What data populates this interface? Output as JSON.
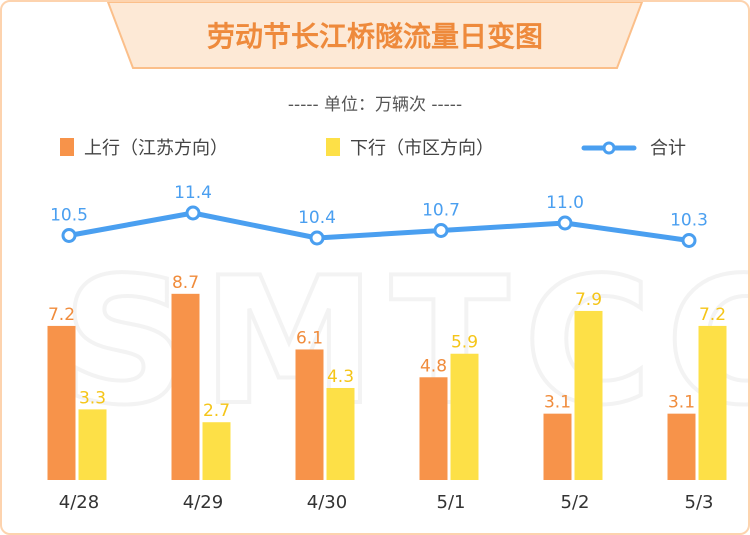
{
  "title": "劳动节长江桥隧流量日变图",
  "unit": "----- 单位：万辆次 -----",
  "watermark": "SMTCC",
  "colors": {
    "outbound": "#f7934a",
    "inbound": "#fde047",
    "total": "#4a9ff0",
    "title": "#ee8a3c",
    "title_bg": "#fde9d6"
  },
  "chart_data": {
    "type": "bar",
    "categories": [
      "4/28",
      "4/29",
      "4/30",
      "5/1",
      "5/2",
      "5/3"
    ],
    "series": [
      {
        "name": "上行（江苏方向）",
        "type": "bar",
        "values": [
          7.2,
          8.7,
          6.1,
          4.8,
          3.1,
          3.1
        ]
      },
      {
        "name": "下行（市区方向）",
        "type": "bar",
        "values": [
          3.3,
          2.7,
          4.3,
          5.9,
          7.9,
          7.2
        ]
      },
      {
        "name": "合计",
        "type": "line",
        "values": [
          10.5,
          11.4,
          10.4,
          10.7,
          11.0,
          10.3
        ]
      }
    ],
    "legend_position": "top",
    "grid": false
  }
}
